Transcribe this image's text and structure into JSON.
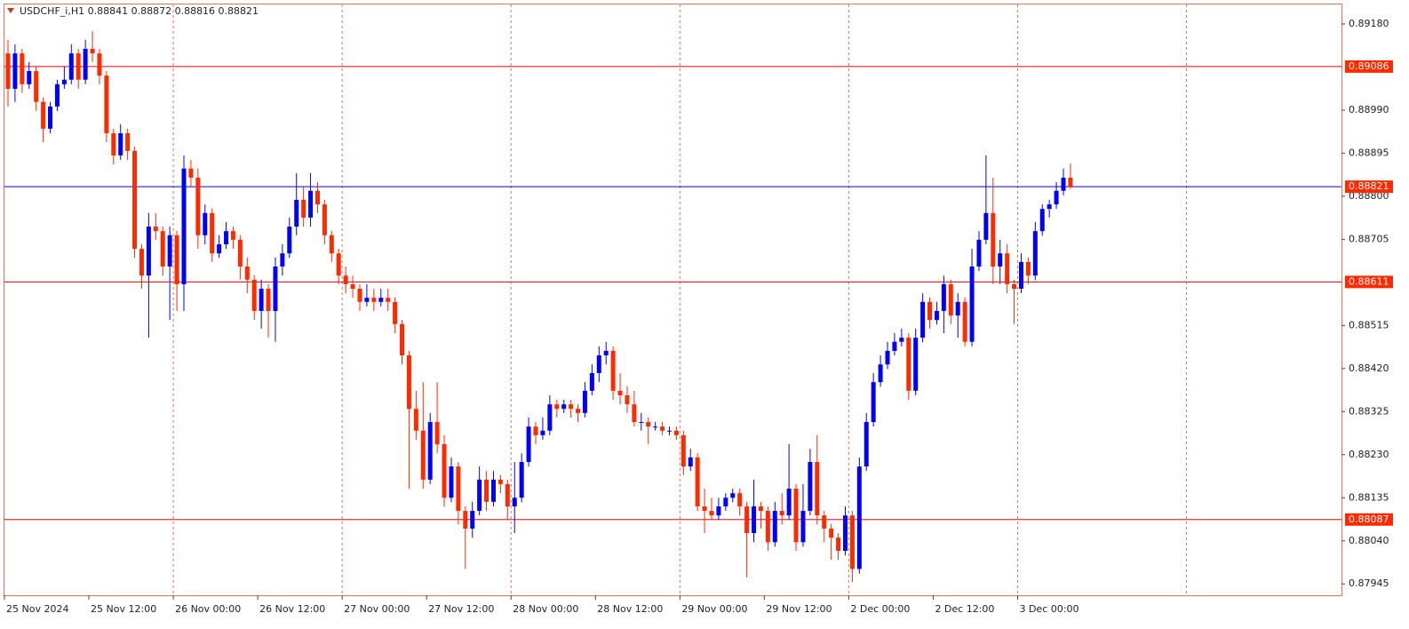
{
  "chart_data": {
    "type": "candlestick",
    "title": "USDCHF_i,H1  0.88841 0.88872 0.88816 0.88821",
    "up_color": "#0000ff",
    "down_color": "#ff2a00",
    "ylim": [
      0.8792,
      0.89223
    ],
    "yticks": [
      {
        "value": 0.8918,
        "label": "0.89180"
      },
      {
        "value": 0.8899,
        "label": "0.88990"
      },
      0.88895,
      {
        "value": 0.888,
        "label": "0.88800"
      },
      0.88705,
      0.88515,
      {
        "value": 0.8842,
        "label": "0.88420"
      },
      0.88325,
      {
        "value": 0.8823,
        "label": "0.88230"
      },
      0.88135,
      {
        "value": 0.8804,
        "label": "0.88040"
      },
      0.87945
    ],
    "hlines": [
      {
        "value": 0.89086,
        "color": "#ff0000"
      },
      {
        "value": 0.88611,
        "color": "#ff0000"
      },
      {
        "value": 0.88087,
        "color": "#ff0000"
      },
      {
        "value": 0.88821,
        "color": "#0000ff"
      }
    ],
    "categories": [
      "25 Nov 2024",
      null,
      null,
      null,
      null,
      null,
      null,
      null,
      null,
      null,
      null,
      null,
      "25 Nov 12:00",
      null,
      null,
      null,
      null,
      null,
      null,
      null,
      null,
      null,
      null,
      null,
      "26 Nov 00:00",
      null,
      null,
      null,
      null,
      null,
      null,
      null,
      null,
      null,
      null,
      null,
      "26 Nov 12:00",
      null,
      null,
      null,
      null,
      null,
      null,
      null,
      null,
      null,
      null,
      null,
      "27 Nov 00:00",
      null,
      null,
      null,
      null,
      null,
      null,
      null,
      null,
      null,
      null,
      null,
      "27 Nov 12:00",
      null,
      null,
      null,
      null,
      null,
      null,
      null,
      null,
      null,
      null,
      null,
      "28 Nov 00:00",
      null,
      null,
      null,
      null,
      null,
      null,
      null,
      null,
      null,
      null,
      null,
      "28 Nov 12:00",
      null,
      null,
      null,
      null,
      null,
      null,
      null,
      null,
      null,
      null,
      null,
      "29 Nov 00:00",
      null,
      null,
      null,
      null,
      null,
      null,
      null,
      null,
      null,
      null,
      null,
      "29 Nov 12:00",
      null,
      null,
      null,
      null,
      null,
      null,
      null,
      null,
      null,
      null,
      null,
      "2 Dec 00:00",
      null,
      null,
      null,
      null,
      null,
      null,
      null,
      null,
      null,
      null,
      null,
      "2 Dec 12:00",
      null,
      null,
      null,
      null,
      null,
      null,
      null,
      null,
      null,
      null,
      null,
      "3 Dec 00:00",
      null,
      null,
      null,
      null,
      null,
      null,
      null
    ],
    "ohlc": [
      [
        0.89115,
        0.89145,
        0.88998,
        0.89037
      ],
      [
        0.89037,
        0.89135,
        0.89008,
        0.89115
      ],
      [
        0.89115,
        0.89125,
        0.89028,
        0.89047
      ],
      [
        0.89047,
        0.89096,
        0.89037,
        0.89076
      ],
      [
        0.89076,
        0.89086,
        0.88988,
        0.89008
      ],
      [
        0.89008,
        0.89018,
        0.88919,
        0.88949
      ],
      [
        0.88949,
        0.89008,
        0.88939,
        0.88998
      ],
      [
        0.88998,
        0.89057,
        0.88988,
        0.89047
      ],
      [
        0.89047,
        0.89086,
        0.89037,
        0.89057
      ],
      [
        0.89057,
        0.89135,
        0.89047,
        0.89115
      ],
      [
        0.89115,
        0.89125,
        0.89037,
        0.89057
      ],
      [
        0.89057,
        0.89145,
        0.89047,
        0.89125
      ],
      [
        0.89125,
        0.89164,
        0.89096,
        0.89115
      ],
      [
        0.89115,
        0.89125,
        0.89047,
        0.89066
      ],
      [
        0.89066,
        0.89076,
        0.88919,
        0.88939
      ],
      [
        0.88939,
        0.88949,
        0.8887,
        0.8889
      ],
      [
        0.8889,
        0.88959,
        0.8888,
        0.88939
      ],
      [
        0.88939,
        0.88949,
        0.8888,
        0.889
      ],
      [
        0.889,
        0.8891,
        0.88664,
        0.88684
      ],
      [
        0.88684,
        0.88694,
        0.88596,
        0.88625
      ],
      [
        0.88625,
        0.88763,
        0.88488,
        0.88733
      ],
      [
        0.88733,
        0.88763,
        0.88704,
        0.88723
      ],
      [
        0.88723,
        0.88733,
        0.88625,
        0.88645
      ],
      [
        0.88645,
        0.88733,
        0.88527,
        0.88714
      ],
      [
        0.88714,
        0.88724,
        0.88547,
        0.88606
      ],
      [
        0.88606,
        0.8889,
        0.88547,
        0.88861
      ],
      [
        0.88861,
        0.8888,
        0.88821,
        0.88841
      ],
      [
        0.88841,
        0.88861,
        0.88684,
        0.88714
      ],
      [
        0.88714,
        0.88782,
        0.88694,
        0.88763
      ],
      [
        0.88763,
        0.88773,
        0.88655,
        0.88674
      ],
      [
        0.88674,
        0.88714,
        0.88664,
        0.88694
      ],
      [
        0.88694,
        0.88743,
        0.88684,
        0.88723
      ],
      [
        0.88723,
        0.88733,
        0.88684,
        0.88704
      ],
      [
        0.88704,
        0.88714,
        0.88616,
        0.88645
      ],
      [
        0.88645,
        0.88665,
        0.88586,
        0.88616
      ],
      [
        0.88616,
        0.88626,
        0.88527,
        0.88547
      ],
      [
        0.88547,
        0.88616,
        0.88508,
        0.88596
      ],
      [
        0.88596,
        0.88606,
        0.88488,
        0.88547
      ],
      [
        0.88547,
        0.88665,
        0.88479,
        0.88645
      ],
      [
        0.88645,
        0.88694,
        0.88625,
        0.88674
      ],
      [
        0.88674,
        0.88753,
        0.88664,
        0.88733
      ],
      [
        0.88733,
        0.88851,
        0.88714,
        0.88792
      ],
      [
        0.88792,
        0.88821,
        0.88733,
        0.88753
      ],
      [
        0.88753,
        0.88851,
        0.88733,
        0.88812
      ],
      [
        0.88812,
        0.88831,
        0.88763,
        0.88782
      ],
      [
        0.88782,
        0.88792,
        0.88694,
        0.88714
      ],
      [
        0.88714,
        0.88724,
        0.88655,
        0.88674
      ],
      [
        0.88674,
        0.88684,
        0.88606,
        0.88625
      ],
      [
        0.88625,
        0.88645,
        0.88586,
        0.88606
      ],
      [
        0.88606,
        0.88625,
        0.88576,
        0.88596
      ],
      [
        0.88596,
        0.88606,
        0.88547,
        0.88567
      ],
      [
        0.88567,
        0.88606,
        0.88557,
        0.88576
      ],
      [
        0.88576,
        0.88596,
        0.88547,
        0.88567
      ],
      [
        0.88567,
        0.88596,
        0.88557,
        0.88576
      ],
      [
        0.88576,
        0.88596,
        0.88547,
        0.88567
      ],
      [
        0.88567,
        0.88577,
        0.88498,
        0.88518
      ],
      [
        0.88518,
        0.88527,
        0.88429,
        0.88449
      ],
      [
        0.88449,
        0.88459,
        0.88155,
        0.88331
      ],
      [
        0.88331,
        0.88371,
        0.88263,
        0.88283
      ],
      [
        0.88283,
        0.8839,
        0.88155,
        0.88175
      ],
      [
        0.88175,
        0.88322,
        0.88165,
        0.88302
      ],
      [
        0.88302,
        0.8839,
        0.88233,
        0.88253
      ],
      [
        0.88253,
        0.88273,
        0.88115,
        0.88135
      ],
      [
        0.88135,
        0.88224,
        0.88125,
        0.88204
      ],
      [
        0.88204,
        0.88214,
        0.88076,
        0.88106
      ],
      [
        0.88106,
        0.88116,
        0.87978,
        0.88067
      ],
      [
        0.88067,
        0.88126,
        0.88047,
        0.88106
      ],
      [
        0.88106,
        0.88204,
        0.88096,
        0.88175
      ],
      [
        0.88175,
        0.88194,
        0.88106,
        0.88126
      ],
      [
        0.88126,
        0.88194,
        0.88116,
        0.88175
      ],
      [
        0.88175,
        0.88185,
        0.88145,
        0.88165
      ],
      [
        0.88165,
        0.88175,
        0.88086,
        0.88116
      ],
      [
        0.88116,
        0.88214,
        0.88057,
        0.88135
      ],
      [
        0.88135,
        0.88233,
        0.88125,
        0.88214
      ],
      [
        0.88214,
        0.88312,
        0.88204,
        0.88292
      ],
      [
        0.88292,
        0.88302,
        0.88253,
        0.88273
      ],
      [
        0.88273,
        0.88312,
        0.88263,
        0.88283
      ],
      [
        0.88283,
        0.88361,
        0.88273,
        0.88341
      ],
      [
        0.88341,
        0.88351,
        0.88312,
        0.88331
      ],
      [
        0.88331,
        0.88351,
        0.88322,
        0.88341
      ],
      [
        0.88341,
        0.88351,
        0.88312,
        0.88331
      ],
      [
        0.88331,
        0.88341,
        0.88302,
        0.88322
      ],
      [
        0.88322,
        0.8839,
        0.88312,
        0.88371
      ],
      [
        0.88371,
        0.88429,
        0.88361,
        0.8841
      ],
      [
        0.8841,
        0.88469,
        0.8839,
        0.88449
      ],
      [
        0.88449,
        0.88479,
        0.88429,
        0.88459
      ],
      [
        0.88459,
        0.88469,
        0.88351,
        0.88371
      ],
      [
        0.88371,
        0.8841,
        0.88341,
        0.88361
      ],
      [
        0.88361,
        0.88381,
        0.88322,
        0.88341
      ],
      [
        0.88341,
        0.88371,
        0.88292,
        0.88302
      ],
      [
        0.88302,
        0.88322,
        0.88283,
        0.88302
      ],
      [
        0.88302,
        0.88312,
        0.88253,
        0.88292
      ],
      [
        0.88292,
        0.88302,
        0.88283,
        0.88292
      ],
      [
        0.88292,
        0.88302,
        0.88273,
        0.88283
      ],
      [
        0.88283,
        0.88292,
        0.88273,
        0.88283
      ],
      [
        0.88283,
        0.88292,
        0.88263,
        0.88273
      ],
      [
        0.88273,
        0.88283,
        0.88185,
        0.88204
      ],
      [
        0.88204,
        0.88243,
        0.88194,
        0.88224
      ],
      [
        0.88224,
        0.88233,
        0.88106,
        0.88116
      ],
      [
        0.88116,
        0.88155,
        0.88057,
        0.88106
      ],
      [
        0.88106,
        0.88135,
        0.88086,
        0.88096
      ],
      [
        0.88096,
        0.88135,
        0.88086,
        0.88116
      ],
      [
        0.88116,
        0.88145,
        0.88106,
        0.88135
      ],
      [
        0.88135,
        0.88155,
        0.88125,
        0.88145
      ],
      [
        0.88145,
        0.88155,
        0.88096,
        0.88116
      ],
      [
        0.88116,
        0.88126,
        0.87959,
        0.88057
      ],
      [
        0.88057,
        0.88175,
        0.88037,
        0.88116
      ],
      [
        0.88116,
        0.88126,
        0.88067,
        0.88106
      ],
      [
        0.88106,
        0.88116,
        0.88018,
        0.88037
      ],
      [
        0.88037,
        0.88126,
        0.88027,
        0.88106
      ],
      [
        0.88106,
        0.88145,
        0.88076,
        0.88096
      ],
      [
        0.88096,
        0.88253,
        0.88086,
        0.88155
      ],
      [
        0.88155,
        0.88165,
        0.88018,
        0.88037
      ],
      [
        0.88037,
        0.88165,
        0.88027,
        0.88106
      ],
      [
        0.88106,
        0.88243,
        0.88096,
        0.88214
      ],
      [
        0.88214,
        0.88273,
        0.88076,
        0.88096
      ],
      [
        0.88096,
        0.88106,
        0.88037,
        0.88067
      ],
      [
        0.88067,
        0.88077,
        0.87998,
        0.88047
      ],
      [
        0.88047,
        0.88057,
        0.87998,
        0.88018
      ],
      [
        0.88018,
        0.88116,
        0.88008,
        0.88096
      ],
      [
        0.88096,
        0.88106,
        0.87949,
        0.87978
      ],
      [
        0.87978,
        0.88224,
        0.87968,
        0.88204
      ],
      [
        0.88204,
        0.88322,
        0.88194,
        0.88302
      ],
      [
        0.88302,
        0.8841,
        0.88292,
        0.8839
      ],
      [
        0.8839,
        0.88449,
        0.8838,
        0.88429
      ],
      [
        0.88429,
        0.88479,
        0.88419,
        0.88459
      ],
      [
        0.88459,
        0.88498,
        0.88449,
        0.88479
      ],
      [
        0.88479,
        0.88508,
        0.88469,
        0.88488
      ],
      [
        0.88488,
        0.88498,
        0.88351,
        0.88371
      ],
      [
        0.88371,
        0.88508,
        0.88361,
        0.88488
      ],
      [
        0.88488,
        0.88586,
        0.88478,
        0.88567
      ],
      [
        0.88567,
        0.88577,
        0.88508,
        0.88527
      ],
      [
        0.88527,
        0.88567,
        0.88517,
        0.88547
      ],
      [
        0.88547,
        0.88625,
        0.88498,
        0.88606
      ],
      [
        0.88606,
        0.88616,
        0.88518,
        0.88537
      ],
      [
        0.88537,
        0.88586,
        0.88488,
        0.88567
      ],
      [
        0.88567,
        0.88577,
        0.88469,
        0.88479
      ],
      [
        0.88479,
        0.88684,
        0.88469,
        0.88645
      ],
      [
        0.88645,
        0.88723,
        0.88635,
        0.88704
      ],
      [
        0.88704,
        0.8889,
        0.88694,
        0.88763
      ],
      [
        0.88763,
        0.88841,
        0.88606,
        0.88645
      ],
      [
        0.88645,
        0.88704,
        0.88606,
        0.88674
      ],
      [
        0.88674,
        0.88694,
        0.88586,
        0.88606
      ],
      [
        0.88606,
        0.88616,
        0.88518,
        0.88596
      ],
      [
        0.88596,
        0.88674,
        0.88586,
        0.88655
      ],
      [
        0.88655,
        0.88665,
        0.88606,
        0.88625
      ],
      [
        0.88625,
        0.88743,
        0.88615,
        0.88723
      ],
      [
        0.88723,
        0.88782,
        0.88713,
        0.88772
      ],
      [
        0.88772,
        0.88792,
        0.88753,
        0.88782
      ],
      [
        0.88782,
        0.88831,
        0.88772,
        0.88812
      ],
      [
        0.88812,
        0.88861,
        0.88802,
        0.88841
      ],
      [
        0.88841,
        0.88872,
        0.88816,
        0.88821
      ]
    ]
  }
}
